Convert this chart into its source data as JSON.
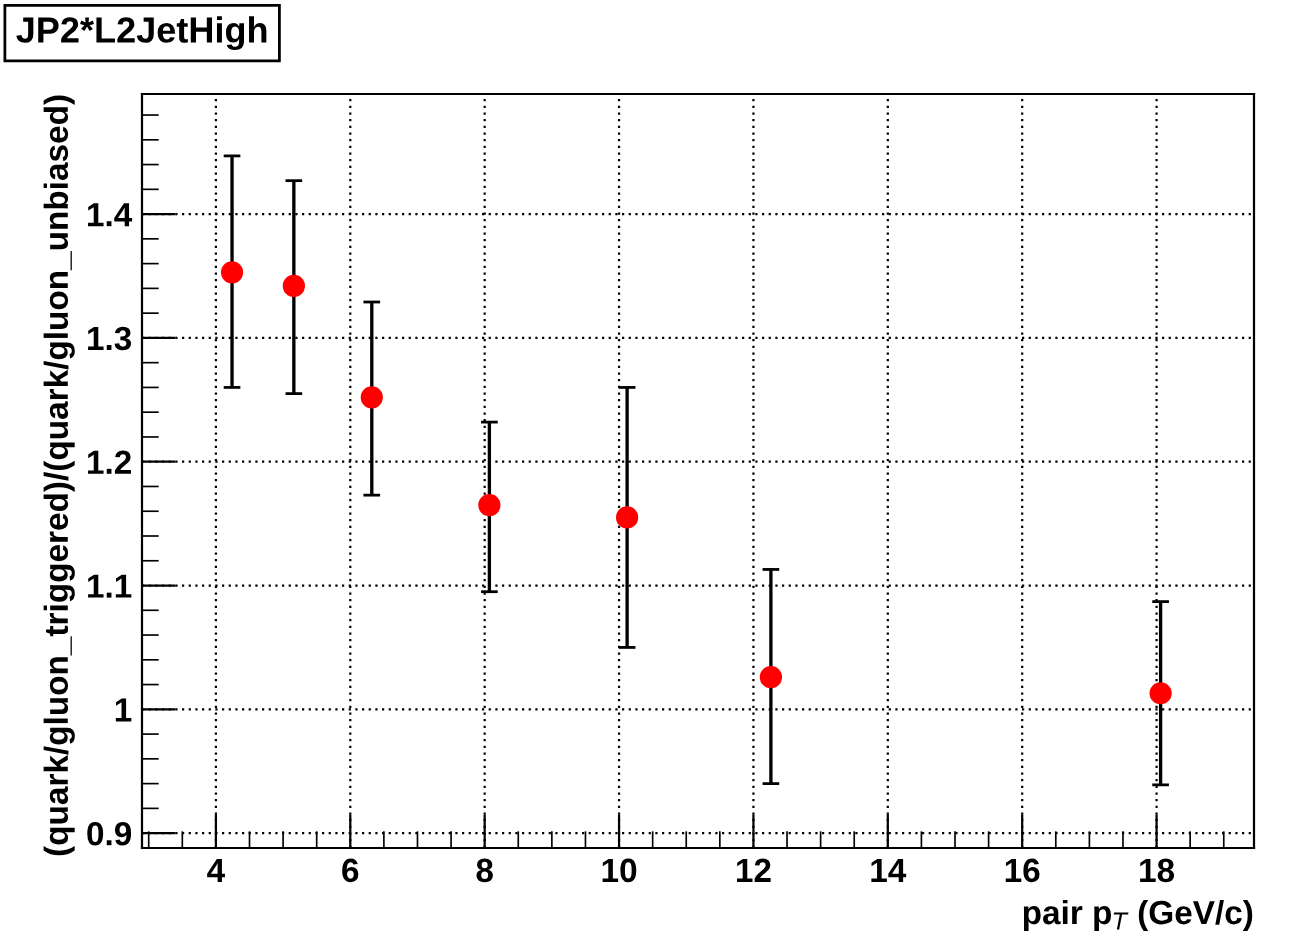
{
  "chart_data": {
    "type": "scatter",
    "title": "JP2*L2JetHigh",
    "xlabel": "pair p$_{T}$ (GeV/c)",
    "ylabel": "(quark/gluon_triggered)/(quark/gluon_unbiased)",
    "x": [
      4.24,
      5.16,
      6.32,
      8.07,
      10.12,
      12.26,
      18.06
    ],
    "series": [
      {
        "color": "#ff0000",
        "values": [
          1.353,
          1.342,
          1.252,
          1.165,
          1.155,
          1.026,
          1.013
        ],
        "errors": [
          [
            1.26,
            1.447
          ],
          [
            1.255,
            1.427
          ],
          [
            1.173,
            1.329
          ],
          [
            1.095,
            1.232
          ],
          [
            1.05,
            1.26
          ],
          [
            0.94,
            1.113
          ],
          [
            0.939,
            1.087
          ]
        ]
      }
    ],
    "xlim": [
      2.9,
      19.45
    ],
    "ylim": [
      0.888,
      1.497
    ],
    "xticks": [
      4,
      6,
      8,
      10,
      12,
      14,
      16,
      18
    ],
    "yticks": [
      {
        "value": 0.9,
        "label": "0.9"
      },
      1,
      {
        "value": 1.1,
        "label": "1.1"
      },
      {
        "value": 1.2,
        "label": "1.2"
      },
      {
        "value": 1.3,
        "label": "1.3"
      },
      {
        "value": 1.4,
        "label": "1.4"
      }
    ],
    "grid": true,
    "marker": "circle",
    "legend": false
  }
}
